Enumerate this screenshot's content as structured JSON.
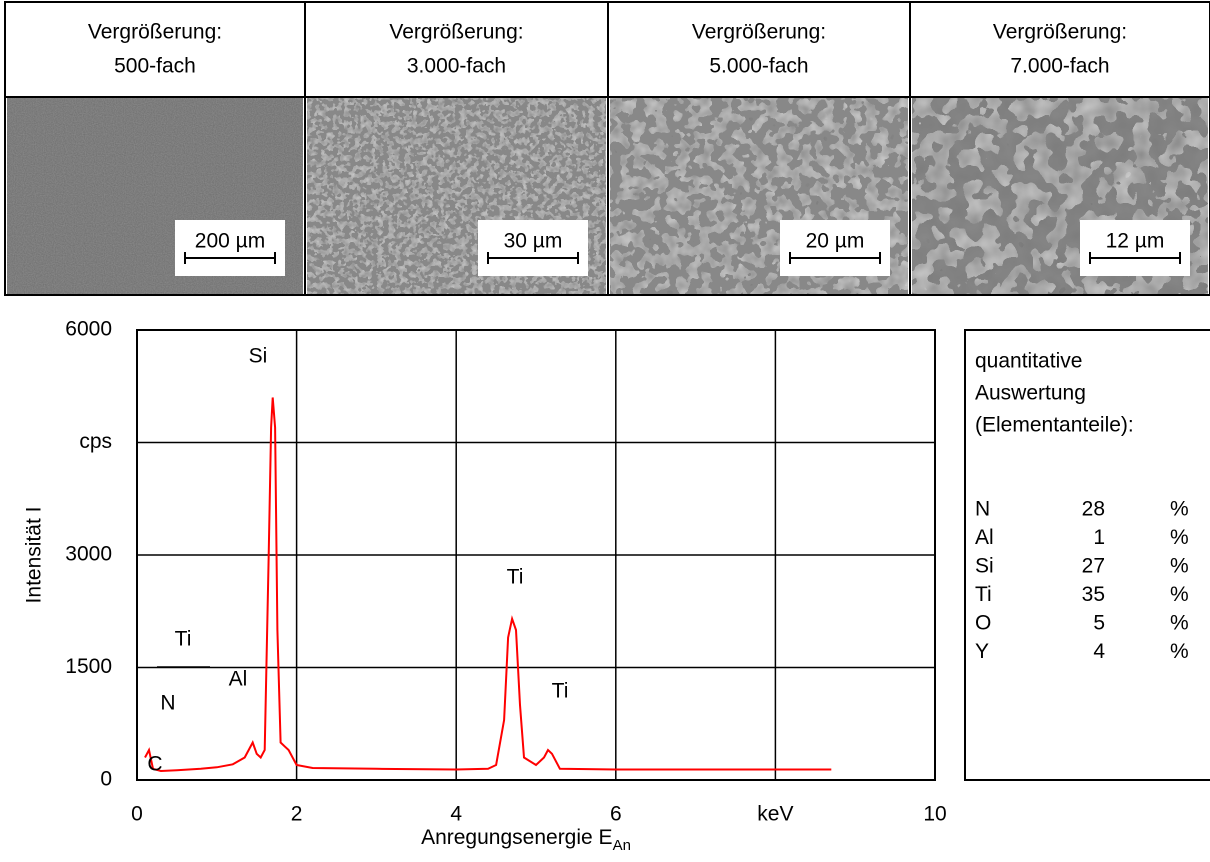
{
  "micrographs": [
    {
      "title": [
        "Vergrößerung:",
        "500-fach"
      ],
      "scale": "200 µm"
    },
    {
      "title": [
        "Vergrößerung:",
        "3.000-fach"
      ],
      "scale": "30 µm"
    },
    {
      "title": [
        "Vergrößerung:",
        "5.000-fach"
      ],
      "scale": "20 µm"
    },
    {
      "title": [
        "Vergrößerung:",
        "7.000-fach"
      ],
      "scale": "12 µm"
    }
  ],
  "chart_data": {
    "type": "line",
    "x_label": "Anregungsenergie E",
    "x_label_subscript": "An",
    "y_label": "Intensität I",
    "xlim": [
      0,
      10
    ],
    "xticks": [
      0,
      2,
      4,
      6,
      {
        "value": 8,
        "label": "keV"
      },
      10
    ],
    "ylim": [
      0,
      6000
    ],
    "yticks": [
      0,
      1500,
      3000,
      {
        "value": 4500,
        "label": "cps"
      },
      6000
    ],
    "grid": true,
    "annotations": [
      "Si",
      "Ti",
      "Ti",
      "Ti",
      "Al",
      "N",
      "C"
    ],
    "series": [
      {
        "color": "#ff0000",
        "x": [
          0.1,
          0.15,
          0.2,
          0.3,
          0.5,
          0.8,
          1.0,
          1.2,
          1.35,
          1.45,
          1.5,
          1.55,
          1.6,
          1.65,
          1.68,
          1.7,
          1.73,
          1.76,
          1.8,
          1.85,
          1.9,
          2.0,
          2.2,
          3.0,
          4.0,
          4.4,
          4.5,
          4.6,
          4.65,
          4.7,
          4.75,
          4.8,
          4.85,
          5.0,
          5.1,
          5.15,
          5.2,
          5.3,
          6.0,
          7.0,
          8.7
        ],
        "values": [
          300,
          400,
          150,
          120,
          130,
          150,
          170,
          210,
          300,
          500,
          350,
          300,
          400,
          3000,
          4700,
          5100,
          4700,
          2000,
          500,
          450,
          400,
          200,
          160,
          150,
          140,
          150,
          200,
          800,
          1900,
          2150,
          2000,
          1000,
          300,
          200,
          300,
          400,
          350,
          150,
          140,
          140,
          140
        ]
      }
    ]
  },
  "table": {
    "title": [
      "quantitative",
      "Auswertung",
      "(Elementanteile):"
    ],
    "rows": [
      [
        "N",
        "28",
        "%"
      ],
      [
        "Al",
        "1",
        "%"
      ],
      [
        "Si",
        "27",
        "%"
      ],
      [
        "Ti",
        "35",
        "%"
      ],
      [
        "O",
        "5",
        "%"
      ],
      [
        "Y",
        "4",
        "%"
      ]
    ]
  }
}
